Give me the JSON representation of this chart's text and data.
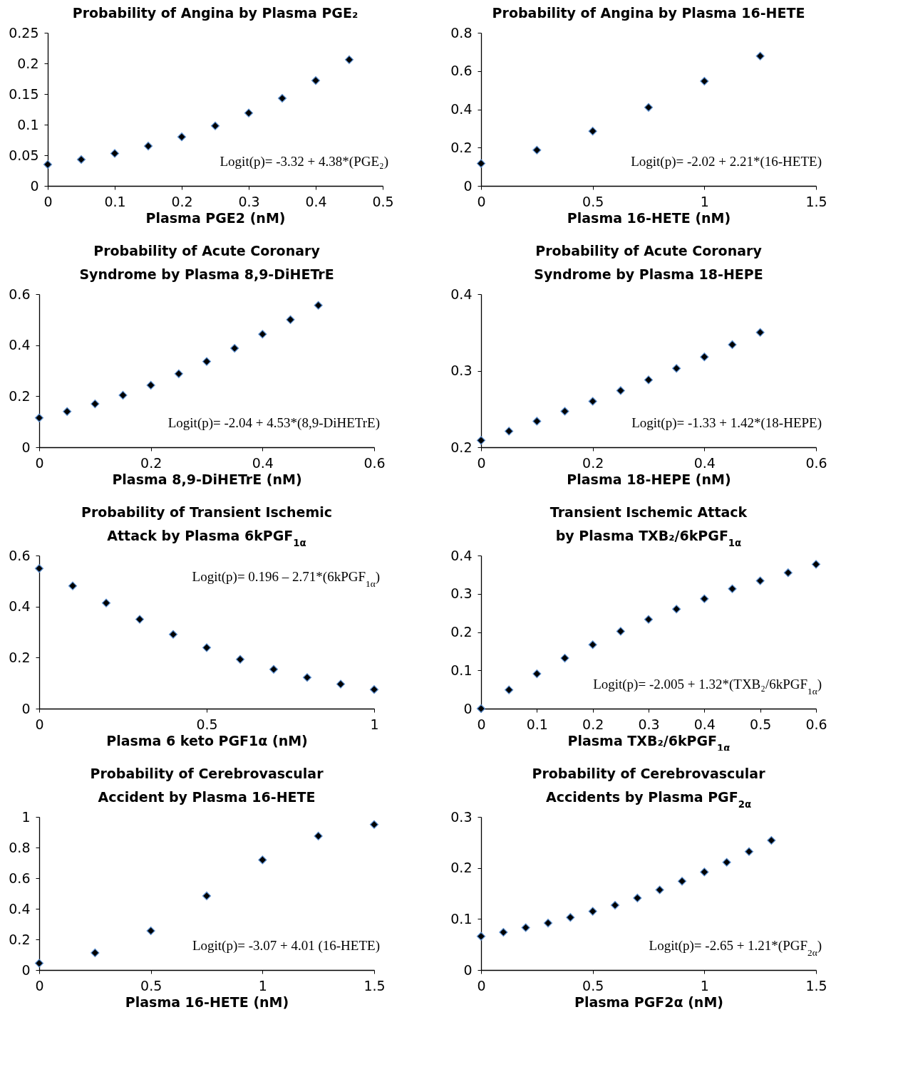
{
  "chart_data": [
    {
      "type": "scatter",
      "title": "Probability of Angina by Plasma PGE₂",
      "xlabel": "Plasma PGE2 (nM)",
      "marker": "diamond",
      "grid": false,
      "x": [
        0,
        0.05,
        0.1,
        0.15,
        0.2,
        0.25,
        0.3,
        0.35,
        0.4,
        0.45
      ],
      "series": [
        {
          "color": "#000000",
          "values": [
            0.035,
            0.043,
            0.053,
            0.065,
            0.08,
            0.098,
            0.119,
            0.143,
            0.172,
            0.206
          ]
        }
      ],
      "xlim": [
        0,
        0.5
      ],
      "xticks": [
        0,
        0.1,
        0.2,
        0.3,
        0.4,
        0.5
      ],
      "ylim": [
        0,
        0.25
      ],
      "yticks": [
        0,
        0.05,
        0.1,
        0.15,
        0.2,
        0.25
      ],
      "annotations": [
        "Logit(p)= -3.32 + 4.38*(PGE₂)"
      ]
    },
    {
      "type": "scatter",
      "title": "Probability of Angina by Plasma 16-HETE",
      "xlabel": "Plasma 16-HETE (nM)",
      "marker": "diamond",
      "grid": false,
      "x": [
        0,
        0.25,
        0.5,
        0.75,
        1,
        1.25
      ],
      "series": [
        {
          "color": "#000000",
          "values": [
            0.117,
            0.187,
            0.286,
            0.41,
            0.547,
            0.678
          ]
        }
      ],
      "xlim": [
        0,
        1.5
      ],
      "xticks": [
        0,
        0.5,
        1,
        1.5
      ],
      "ylim": [
        0,
        0.8
      ],
      "yticks": [
        0,
        0.2,
        0.4,
        0.6,
        0.8
      ],
      "annotations": [
        "Logit(p)= -2.02 + 2.21*(16-HETE)"
      ]
    },
    {
      "type": "scatter",
      "title": "Probability of Acute Coronary Syndrome by Plasma 8,9-DiHETrE",
      "xlabel": "Plasma 8,9-DiHETrE (nM)",
      "marker": "diamond",
      "grid": false,
      "x": [
        0,
        0.05,
        0.1,
        0.15,
        0.2,
        0.25,
        0.3,
        0.35,
        0.4,
        0.45,
        0.5
      ],
      "series": [
        {
          "color": "#000000",
          "values": [
            0.115,
            0.14,
            0.17,
            0.204,
            0.243,
            0.288,
            0.336,
            0.388,
            0.443,
            0.5,
            0.556
          ]
        }
      ],
      "xlim": [
        0,
        0.6
      ],
      "xticks": [
        0,
        0.2,
        0.4,
        0.6
      ],
      "ylim": [
        0,
        0.6
      ],
      "yticks": [
        0,
        0.2,
        0.4,
        0.6
      ],
      "annotations": [
        "Logit(p)= -2.04 + 4.53*(8,9-DiHETrE)"
      ]
    },
    {
      "type": "scatter",
      "title": "Probability of Acute Coronary Syndrome by Plasma 18-HEPE",
      "xlabel": "Plasma 18-HEPE (nM)",
      "marker": "diamond",
      "grid": false,
      "x": [
        0,
        0.05,
        0.1,
        0.15,
        0.2,
        0.25,
        0.3,
        0.35,
        0.4,
        0.45,
        0.5
      ],
      "series": [
        {
          "color": "#000000",
          "values": [
            0.209,
            0.221,
            0.234,
            0.247,
            0.26,
            0.274,
            0.288,
            0.303,
            0.318,
            0.334,
            0.35
          ]
        }
      ],
      "xlim": [
        0,
        0.6
      ],
      "xticks": [
        0,
        0.2,
        0.4,
        0.6
      ],
      "ylim": [
        0.2,
        0.4
      ],
      "yticks": [
        0.2,
        0.3,
        0.4
      ],
      "annotations": [
        "Logit(p)= -1.33 + 1.42*(18-HEPE)"
      ]
    },
    {
      "type": "scatter",
      "title": "Probability of Transient Ischemic Attack by Plasma 6kPGF$_{1α}$",
      "xlabel": "Plasma 6 keto PGF1α (nM)",
      "marker": "diamond",
      "grid": false,
      "x": [
        0,
        0.1,
        0.2,
        0.3,
        0.4,
        0.5,
        0.6,
        0.7,
        0.8,
        0.9,
        1
      ],
      "series": [
        {
          "color": "#000000",
          "values": [
            0.549,
            0.481,
            0.414,
            0.35,
            0.291,
            0.239,
            0.193,
            0.154,
            0.122,
            0.096,
            0.075
          ]
        }
      ],
      "xlim": [
        0,
        1
      ],
      "xticks": [
        0,
        0.5,
        1
      ],
      "ylim": [
        0,
        0.6
      ],
      "yticks": [
        0,
        0.2,
        0.4,
        0.6
      ],
      "annotations": [
        "Logit(p)= 0.196 – 2.71*(6kPGF$_{1α}$)"
      ]
    },
    {
      "type": "scatter",
      "title": "Transient Ischemic Attack by Plasma TXB₂/6kPGF$_{1α}$",
      "xlabel": "Plasma TXB₂/6kPGF$_{1α}$",
      "marker": "diamond",
      "grid": false,
      "x": [
        0,
        0.05,
        0.1,
        0.15,
        0.2,
        0.25,
        0.3,
        0.35,
        0.4,
        0.45,
        0.5,
        0.55,
        0.6
      ],
      "series": [
        {
          "color": "#000000",
          "values": [
            0,
            0.049,
            0.091,
            0.132,
            0.167,
            0.202,
            0.233,
            0.26,
            0.287,
            0.313,
            0.334,
            0.355,
            0.377
          ]
        }
      ],
      "xlim": [
        0,
        0.6
      ],
      "xticks": [
        0,
        0.1,
        0.2,
        0.3,
        0.4,
        0.5,
        0.6
      ],
      "ylim": [
        0,
        0.4
      ],
      "yticks": [
        0,
        0.1,
        0.2,
        0.3,
        0.4
      ],
      "annotations": [
        "Logit(p)= -2.005 + 1.32*(TXB₂/6kPGF$_{1α}$)"
      ]
    },
    {
      "type": "scatter",
      "title": "Probability of Cerebrovascular Accident by Plasma 16-HETE",
      "xlabel": "Plasma 16-HETE (nM)",
      "marker": "diamond",
      "grid": false,
      "x": [
        0,
        0.25,
        0.5,
        0.75,
        1,
        1.25,
        1.5
      ],
      "series": [
        {
          "color": "#000000",
          "values": [
            0.044,
            0.112,
            0.256,
            0.484,
            0.719,
            0.875,
            0.95
          ]
        }
      ],
      "xlim": [
        0,
        1.5
      ],
      "xticks": [
        0,
        0.5,
        1,
        1.5
      ],
      "ylim": [
        0,
        1
      ],
      "yticks": [
        0,
        0.2,
        0.4,
        0.6,
        0.8,
        1
      ],
      "annotations": [
        "Logit(p)= -3.07 + 4.01 (16-HETE)"
      ]
    },
    {
      "type": "scatter",
      "title": "Probability of Cerebrovascular Accidents by Plasma PGF$_{2α}$",
      "xlabel": "Plasma PGF2α (nM)",
      "marker": "diamond",
      "grid": false,
      "x": [
        0,
        0.1,
        0.2,
        0.3,
        0.4,
        0.5,
        0.6,
        0.7,
        0.8,
        0.9,
        1,
        1.1,
        1.2,
        1.3
      ],
      "series": [
        {
          "color": "#000000",
          "values": [
            0.066,
            0.074,
            0.083,
            0.092,
            0.103,
            0.115,
            0.127,
            0.141,
            0.157,
            0.174,
            0.192,
            0.211,
            0.232,
            0.254
          ]
        }
      ],
      "xlim": [
        0,
        1.5
      ],
      "xticks": [
        0,
        0.5,
        1,
        1.5
      ],
      "ylim": [
        0,
        0.3
      ],
      "yticks": [
        0,
        0.1,
        0.2,
        0.3
      ],
      "annotations": [
        "Logit(p)= -2.65 + 1.21*(PGF$_{2α}$)"
      ]
    }
  ]
}
